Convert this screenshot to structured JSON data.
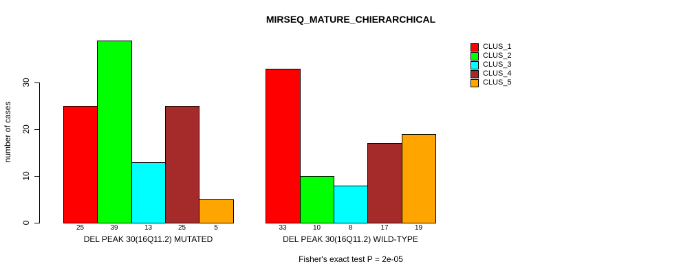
{
  "chart_data": {
    "type": "bar",
    "title": "MIRSEQ_MATURE_CHIERARCHICAL",
    "xlabel": "",
    "ylabel": "number of cases",
    "ylim": [
      0,
      39
    ],
    "yticks": [
      0,
      10,
      20,
      30
    ],
    "grid": false,
    "legend_position": "right",
    "series_names": [
      "CLUS_1",
      "CLUS_2",
      "CLUS_3",
      "CLUS_4",
      "CLUS_5"
    ],
    "colors": [
      "#ff0000",
      "#00ff00",
      "#00ffff",
      "#a52a2a",
      "#ffa500"
    ],
    "groups": [
      {
        "label": "DEL PEAK 30(16Q11.2) MUTATED",
        "values": [
          25,
          39,
          13,
          25,
          5
        ]
      },
      {
        "label": "DEL PEAK 30(16Q11.2) WILD-TYPE",
        "values": [
          33,
          10,
          8,
          17,
          19
        ]
      }
    ],
    "bar_value_labels_shown": true,
    "annotation": "Fisher's exact test P = 2e-05"
  }
}
